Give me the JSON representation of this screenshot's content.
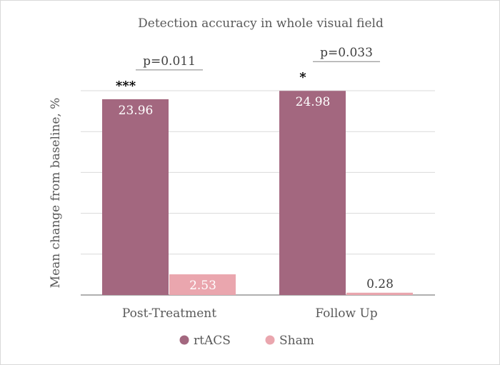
{
  "chart_data": {
    "type": "bar",
    "title": "Detection accuracy in whole visual field",
    "ylabel": "Mean change from baseline, %",
    "xlabel": "",
    "categories": [
      "Post-Treatment",
      "Follow Up"
    ],
    "series": [
      {
        "name": "rtACS",
        "values": [
          23.96,
          24.98
        ],
        "color": "#a3677f",
        "labels": [
          "23.96",
          "24.98"
        ]
      },
      {
        "name": "Sham",
        "values": [
          2.53,
          0.28
        ],
        "color": "#eaa6ae",
        "labels": [
          "2.53",
          "0.28"
        ]
      }
    ],
    "ylim": [
      0,
      25
    ],
    "grid": true,
    "legend": "bottom",
    "annotations": {
      "pvalues": [
        "p=0.011",
        "p=0.033"
      ],
      "significance": [
        "***",
        "*"
      ]
    }
  }
}
